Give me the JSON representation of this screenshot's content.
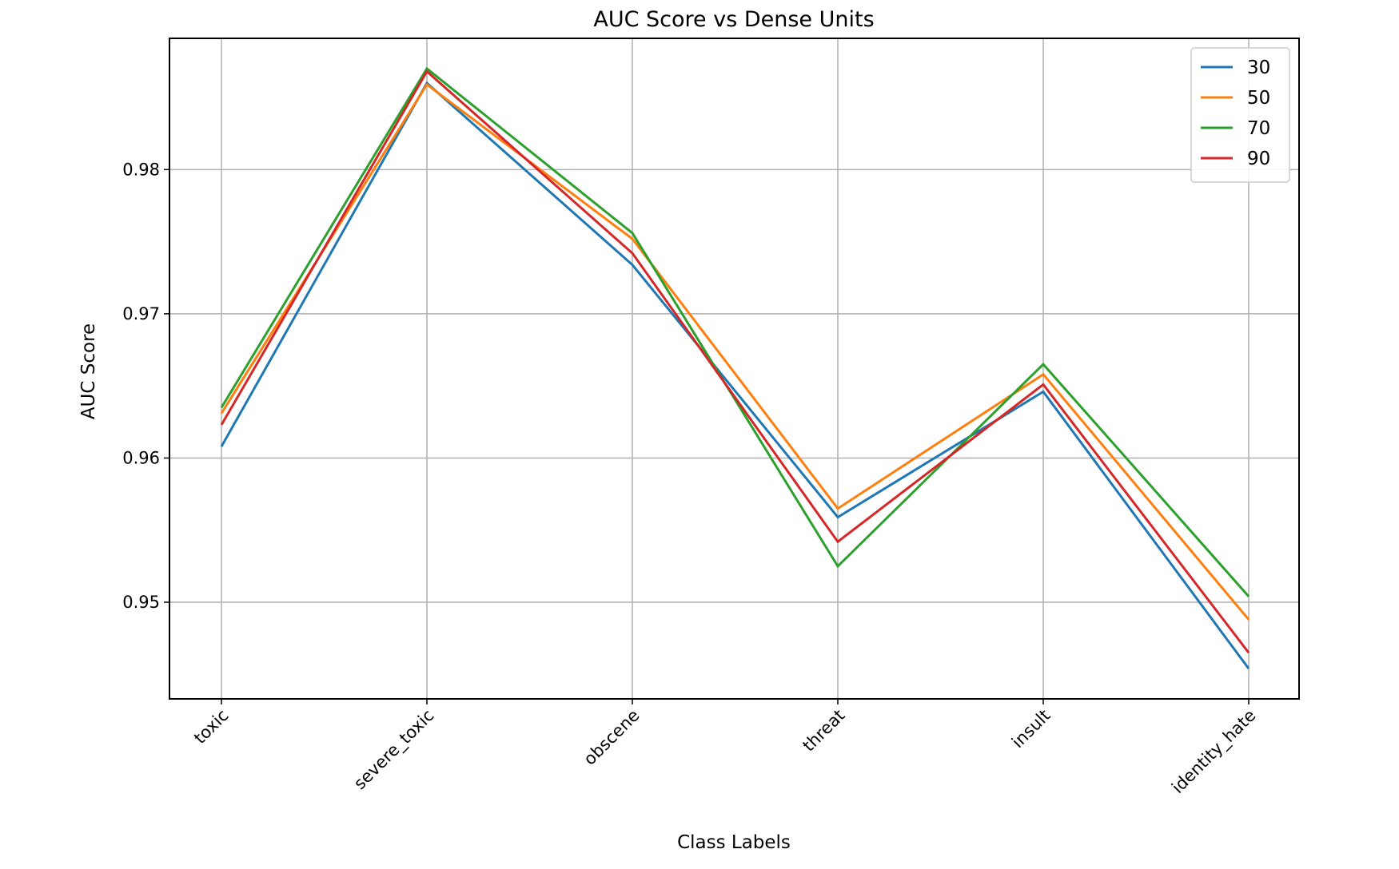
{
  "chart_data": {
    "type": "line",
    "title": "AUC Score vs Dense Units",
    "xlabel": "Class Labels",
    "ylabel": "AUC Score",
    "categories": [
      "toxic",
      "severe_toxic",
      "obscene",
      "threat",
      "insult",
      "identity_hate"
    ],
    "yticks": [
      0.95,
      0.96,
      0.97,
      0.98
    ],
    "ytick_labels": [
      "0.95",
      "0.96",
      "0.97",
      "0.98"
    ],
    "ylim": [
      0.9433,
      0.9891
    ],
    "grid": true,
    "legend_position": "top-right",
    "series": [
      {
        "name": "30",
        "color": "#1f77b4",
        "values": [
          0.9608,
          0.986,
          0.9734,
          0.9559,
          0.9646,
          0.9454
        ]
      },
      {
        "name": "50",
        "color": "#ff7f0e",
        "values": [
          0.9631,
          0.9859,
          0.9752,
          0.9565,
          0.9658,
          0.9488
        ]
      },
      {
        "name": "70",
        "color": "#2ca02c",
        "values": [
          0.9635,
          0.987,
          0.9756,
          0.9525,
          0.9665,
          0.9504
        ]
      },
      {
        "name": "90",
        "color": "#d62728",
        "values": [
          0.9623,
          0.9868,
          0.9742,
          0.9542,
          0.9651,
          0.9465
        ]
      }
    ]
  }
}
